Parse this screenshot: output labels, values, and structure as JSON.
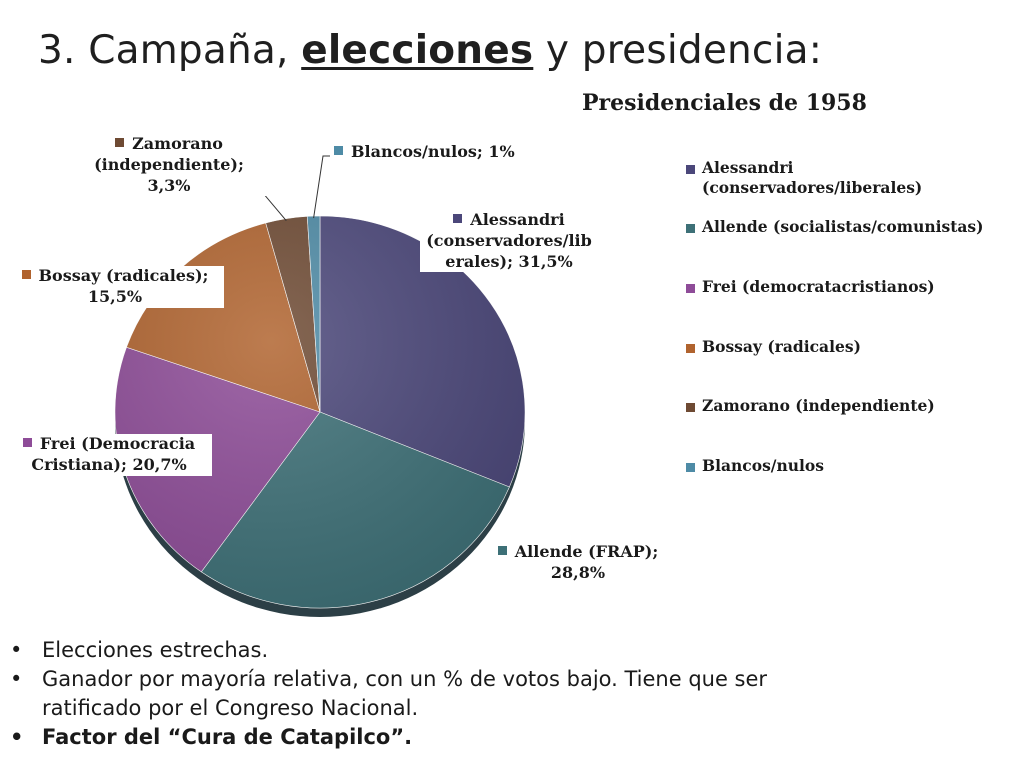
{
  "slide": {
    "title_pre": "3. Campaña, ",
    "title_emph": "elecciones",
    "title_post": " y presidencia:"
  },
  "chart_data": {
    "type": "pie",
    "title": "Presidenciales de 1958",
    "slices": [
      {
        "name": "Alessandri (conservadores/liberales)",
        "value": 31.5,
        "color": "#4B477A",
        "label_lines": [
          "Alessandri",
          "(conservadores/lib",
          "erales); 31,5%"
        ]
      },
      {
        "name": "Allende (socialistas/comunistas)",
        "value": 28.8,
        "color": "#3D7077",
        "label_lines": [
          "Allende (FRAP);",
          "28,8%"
        ]
      },
      {
        "name": "Frei (democratacristianos)",
        "value": 20.7,
        "color": "#8E4C98",
        "label_lines": [
          "Frei (Democracia",
          "Cristiana); 20,7%"
        ]
      },
      {
        "name": "Bossay (radicales)",
        "value": 15.5,
        "color": "#B0632E",
        "label_lines": [
          "Bossay (radicales);",
          "15,5%"
        ]
      },
      {
        "name": "Zamorano (independiente)",
        "value": 3.3,
        "color": "#6E4A33",
        "label_lines": [
          "Zamorano",
          "(independiente);",
          "3,3%"
        ]
      },
      {
        "name": "Blancos/nulos",
        "value": 1,
        "color": "#4E8BA6",
        "label_lines": [
          "Blancos/nulos; 1%"
        ]
      }
    ],
    "legend": {
      "position": "right",
      "items": [
        [
          "Alessandri",
          "(conservadores/liberales)"
        ],
        [
          "Allende (socialistas/comunistas)"
        ],
        [
          "Frei (democratacristianos)"
        ],
        [
          "Bossay (radicales)"
        ],
        [
          "Zamorano (independiente)"
        ],
        [
          "Blancos/nulos"
        ]
      ]
    }
  },
  "bullets": [
    {
      "text": "Elecciones estrechas.",
      "bold": false
    },
    {
      "text": "Ganador por mayoría relativa, con un % de votos bajo. Tiene que ser",
      "bold": false
    },
    {
      "text": "ratificado por el Congreso Nacional.",
      "bold": false,
      "continuation": true
    },
    {
      "text": "Factor del “Cura de Catapilco”.",
      "bold": true
    }
  ],
  "bullet_symbol": "•"
}
